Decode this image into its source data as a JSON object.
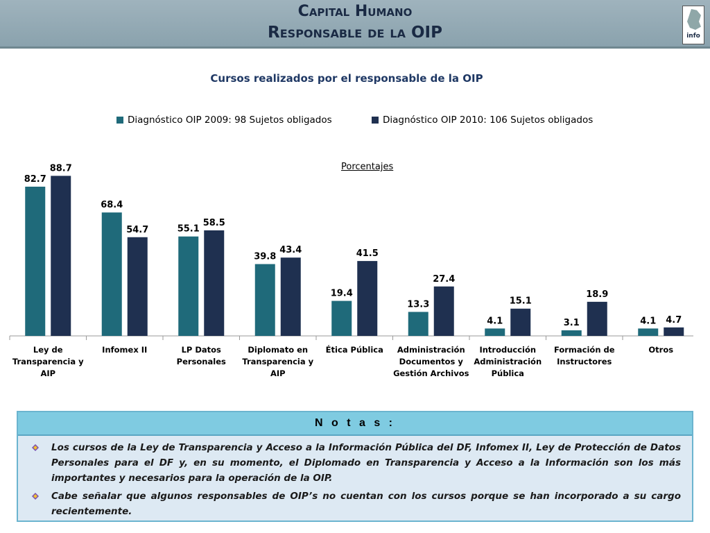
{
  "header": {
    "line1": "Capital Humano",
    "line2": "Responsable de la OIP",
    "logo_text": "info"
  },
  "chart_data": {
    "type": "bar",
    "title": "Cursos realizados por el responsable de la OIP",
    "subtitle": "Porcentajes",
    "categories": [
      "Ley de Transparencia y AIP",
      "Infomex II",
      "LP Datos Personales",
      "Diplomato en Transparencia y AIP",
      "Ética Pública",
      "Administración Documentos y Gestión Archivos",
      "Introducción Administración Pública",
      "Formación de Instructores",
      "Otros"
    ],
    "category_lines": [
      [
        "Ley de",
        "Transparencia y",
        "AIP"
      ],
      [
        "Infomex II"
      ],
      [
        "LP Datos",
        "Personales"
      ],
      [
        "Diplomato en",
        "Transparencia y",
        "AIP"
      ],
      [
        "Ética Pública"
      ],
      [
        "Administración",
        "Documentos y",
        "Gestión Archivos"
      ],
      [
        "Introducción",
        "Administración",
        "Pública"
      ],
      [
        "Formación de",
        "Instructores"
      ],
      [
        "Otros"
      ]
    ],
    "series": [
      {
        "name": "Diagnóstico OIP 2009: 98 Sujetos obligados",
        "color": "#1f6a7a",
        "values": [
          82.7,
          68.4,
          55.1,
          39.8,
          19.4,
          13.3,
          4.1,
          3.1,
          4.1
        ]
      },
      {
        "name": "Diagnóstico OIP 2010: 106 Sujetos obligados",
        "color": "#1f3050",
        "values": [
          88.7,
          54.7,
          58.5,
          43.4,
          41.5,
          27.4,
          15.1,
          18.9,
          4.7
        ]
      }
    ],
    "ylim": [
      0,
      100
    ],
    "grid": false,
    "legend_position": "top"
  },
  "notes": {
    "title": "N o t a s :",
    "items": [
      "Los cursos de la Ley de Transparencia y Acceso a la Información Pública del DF, Infomex II, Ley de Protección de Datos Personales para el DF y, en su momento, el Diplomado en Transparencia y Acceso a la Información son los más importantes y necesarios para la operación de la OIP.",
      "Cabe señalar que algunos responsables de OIP’s no cuentan con los cursos porque se han incorporado a su cargo recientemente."
    ]
  }
}
